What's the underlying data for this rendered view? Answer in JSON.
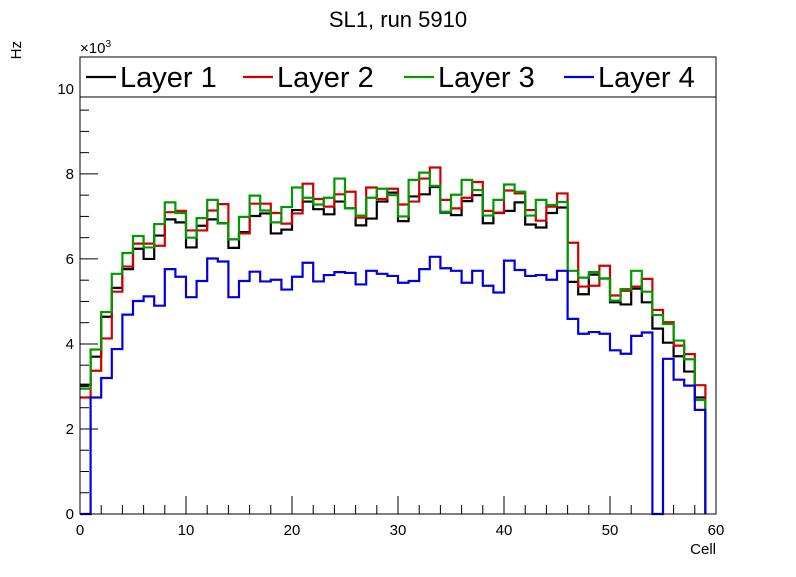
{
  "chart_data": {
    "type": "line",
    "style": "step-histogram",
    "title": "SL1, run 5910",
    "xlabel": "Cell",
    "ylabel": "Hz",
    "y_exponent_label": "×10",
    "y_exponent_power": "3",
    "xlim": [
      0,
      60
    ],
    "ylim": [
      0,
      10.75
    ],
    "x_ticks": [
      "0",
      "10",
      "20",
      "30",
      "40",
      "50",
      "60"
    ],
    "y_ticks": [
      "0",
      "2",
      "4",
      "6",
      "8",
      "10"
    ],
    "y_units_scale": 1000,
    "bin_start": 0,
    "bin_width": 1,
    "legend_position": "top",
    "series": [
      {
        "name": "Layer 1",
        "color": "#000000",
        "values": [
          3.04,
          3.7,
          4.64,
          5.32,
          5.76,
          6.24,
          6.0,
          6.55,
          6.93,
          6.86,
          6.27,
          6.78,
          6.93,
          6.84,
          6.26,
          6.63,
          7.01,
          7.07,
          6.6,
          6.69,
          7.15,
          7.35,
          7.17,
          7.05,
          7.35,
          7.19,
          6.79,
          6.95,
          7.35,
          7.56,
          6.89,
          7.47,
          7.52,
          7.69,
          7.09,
          7.03,
          7.36,
          7.5,
          6.84,
          7.08,
          7.13,
          7.33,
          6.81,
          6.74,
          7.08,
          7.21,
          5.46,
          5.17,
          5.63,
          5.54,
          4.98,
          4.93,
          5.3,
          4.98,
          4.36,
          4.03,
          3.71,
          3.35,
          2.74
        ]
      },
      {
        "name": "Layer 2",
        "color": "#d00000",
        "values": [
          2.74,
          3.37,
          4.13,
          5.23,
          5.82,
          6.36,
          6.36,
          6.31,
          7.1,
          7.13,
          6.67,
          6.67,
          7.14,
          7.29,
          6.46,
          6.6,
          7.3,
          7.3,
          7.08,
          6.83,
          7.07,
          7.77,
          7.41,
          7.23,
          7.52,
          7.58,
          6.97,
          7.68,
          7.41,
          7.65,
          7.28,
          7.35,
          7.89,
          8.15,
          7.39,
          7.19,
          7.44,
          7.81,
          7.13,
          7.09,
          7.61,
          7.54,
          7.15,
          6.9,
          7.23,
          7.54,
          6.38,
          5.35,
          5.37,
          5.84,
          5.14,
          5.25,
          5.35,
          5.53,
          4.8,
          4.51,
          3.96,
          3.76,
          3.03
        ]
      },
      {
        "name": "Layer 3",
        "color": "#009900",
        "values": [
          2.95,
          3.87,
          4.75,
          5.65,
          6.14,
          6.54,
          6.27,
          6.82,
          7.33,
          7.08,
          6.5,
          6.96,
          7.39,
          6.84,
          6.46,
          6.99,
          7.49,
          7.14,
          6.86,
          7.22,
          7.68,
          7.44,
          7.28,
          7.44,
          7.89,
          7.19,
          7.02,
          7.44,
          7.65,
          7.5,
          7.0,
          7.86,
          8.03,
          7.72,
          7.11,
          7.51,
          7.86,
          7.62,
          7.02,
          7.39,
          7.75,
          7.58,
          7.02,
          7.39,
          7.27,
          7.34,
          5.72,
          5.56,
          5.69,
          5.54,
          5.02,
          5.29,
          5.72,
          5.23,
          4.68,
          4.47,
          4.08,
          3.64,
          2.68
        ]
      },
      {
        "name": "Layer 4",
        "color": "#0000dd",
        "values": [
          0,
          2.74,
          3.2,
          3.88,
          4.69,
          5.01,
          5.12,
          4.9,
          5.76,
          5.58,
          5.1,
          5.48,
          6.01,
          5.94,
          5.1,
          5.48,
          5.7,
          5.47,
          5.51,
          5.28,
          5.58,
          5.91,
          5.47,
          5.62,
          5.69,
          5.67,
          5.4,
          5.72,
          5.65,
          5.6,
          5.44,
          5.48,
          5.76,
          6.05,
          5.78,
          5.72,
          5.44,
          5.72,
          5.37,
          5.21,
          5.96,
          5.74,
          5.6,
          5.62,
          5.51,
          5.72,
          4.59,
          4.24,
          4.28,
          4.24,
          3.85,
          3.77,
          4.19,
          4.27,
          0,
          3.65,
          3.16,
          3.02,
          2.45
        ]
      }
    ]
  }
}
